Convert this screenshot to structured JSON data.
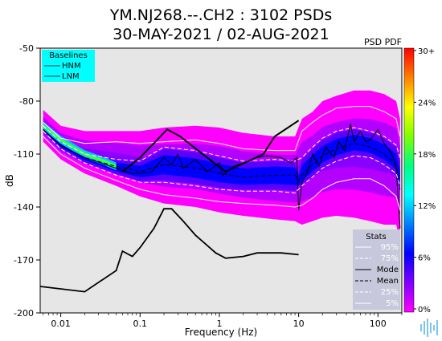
{
  "chart_data": {
    "type": "line",
    "title_line1": "YM.NJ268.--.CH2 : 3102 PSDs",
    "title_line2": "30-MAY-2021 / 02-AUG-2021",
    "corner_label": "PSD PDF",
    "xlabel": "Frequency (Hz)",
    "ylabel": "dB",
    "x_scale": "log",
    "xlim": [
      0.0055,
      200
    ],
    "ylim": [
      -200,
      -50
    ],
    "x_ticks": [
      {
        "value": 0.01,
        "label": "0.01"
      },
      {
        "value": 0.1,
        "label": "0.1"
      },
      {
        "value": 1,
        "label": "1"
      },
      {
        "value": 10,
        "label": "10"
      },
      {
        "value": 100,
        "label": "100"
      }
    ],
    "y_ticks": [
      {
        "value": -50,
        "label": "-50"
      },
      {
        "value": -80,
        "label": "-80"
      },
      {
        "value": -110,
        "label": "-110"
      },
      {
        "value": -140,
        "label": "-140"
      },
      {
        "value": -170,
        "label": "-170"
      },
      {
        "value": -200,
        "label": "-200"
      }
    ],
    "baselines_legend": {
      "title": "Baselines",
      "entries": [
        "HNM",
        "LNM"
      ],
      "background": "#00ffff",
      "placement": "top-left"
    },
    "stats_legend": {
      "title": "Stats",
      "entries": [
        {
          "label": "95%",
          "style": "solid",
          "color": "#ffffff"
        },
        {
          "label": "75%",
          "style": "dashed",
          "color": "#ffffff"
        },
        {
          "label": "Mode",
          "style": "solid",
          "color": "#000000"
        },
        {
          "label": "Mean",
          "style": "dashed",
          "color": "#000000"
        },
        {
          "label": "25%",
          "style": "dashed",
          "color": "#ffffff"
        },
        {
          "label": "5%",
          "style": "solid",
          "color": "#ffffff"
        }
      ],
      "background": "#c8c8dc",
      "placement": "bottom-right"
    },
    "colorbar": {
      "ticks": [
        "30+",
        "24%",
        "18%",
        "12%",
        "6%",
        "0%"
      ],
      "colors": [
        "#ff0000",
        "#ff8000",
        "#ffff00",
        "#80ff00",
        "#00ff80",
        "#00ffff",
        "#0080ff",
        "#0000ff",
        "#8000ff",
        "#ff00ff"
      ]
    },
    "series": [
      {
        "name": "HNM",
        "color": "#000000",
        "style": "solid",
        "x": [
          0.06,
          0.1,
          0.22,
          0.32,
          0.8,
          1.2,
          3.6,
          5,
          10
        ],
        "y": [
          -120,
          -112,
          -96,
          -100,
          -114,
          -120,
          -110,
          -100,
          -91
        ]
      },
      {
        "name": "LNM",
        "color": "#000000",
        "style": "solid",
        "x": [
          0.0055,
          0.02,
          0.05,
          0.06,
          0.08,
          0.1,
          0.15,
          0.2,
          0.25,
          0.35,
          0.5,
          0.9,
          1.2,
          2,
          3,
          6,
          10
        ],
        "y": [
          -185,
          -188,
          -176,
          -165,
          -168,
          -163,
          -152,
          -141,
          -141,
          -148,
          -156,
          -166,
          -169,
          -168,
          -166,
          -166,
          -167
        ]
      },
      {
        "name": "95%",
        "color": "#ffffff",
        "style": "solid",
        "x": [
          0.006,
          0.01,
          0.02,
          0.05,
          0.1,
          0.2,
          0.5,
          1,
          2,
          5,
          9,
          11,
          15,
          20,
          30,
          50,
          80,
          120,
          170,
          190
        ],
        "y": [
          -92,
          -101,
          -104,
          -103,
          -104,
          -103,
          -102,
          -104,
          -107,
          -108,
          -108,
          -97,
          -92,
          -88,
          -84,
          -83,
          -83,
          -86,
          -90,
          -100
        ]
      },
      {
        "name": "75%",
        "color": "#ffffff",
        "style": "dashed",
        "x": [
          0.006,
          0.01,
          0.02,
          0.05,
          0.1,
          0.2,
          0.5,
          1,
          2,
          5,
          9,
          11,
          15,
          20,
          30,
          50,
          80,
          120,
          170,
          190
        ],
        "y": [
          -94,
          -103,
          -110,
          -113,
          -114,
          -106,
          -108,
          -111,
          -114,
          -113,
          -114,
          -112,
          -106,
          -101,
          -97,
          -95,
          -97,
          -100,
          -105,
          -112
        ]
      },
      {
        "name": "Mode",
        "color": "#000000",
        "style": "solid",
        "x": [
          0.006,
          0.01,
          0.02,
          0.05,
          0.08,
          0.1,
          0.14,
          0.2,
          0.25,
          0.3,
          0.35,
          0.5,
          0.7,
          1,
          1.1,
          1.5,
          2,
          3,
          4,
          6,
          8,
          9.5,
          10,
          11,
          13,
          15,
          18,
          22,
          28,
          32,
          38,
          45,
          50,
          60,
          70,
          80,
          100,
          120,
          150,
          170,
          190
        ],
        "y": [
          -96,
          -105,
          -112,
          -118,
          -121,
          -121,
          -120,
          -112,
          -116,
          -110,
          -118,
          -113,
          -120,
          -115,
          -122,
          -117,
          -115,
          -112,
          -111,
          -112,
          -115,
          -112,
          -142,
          -126,
          -120,
          -110,
          -117,
          -106,
          -112,
          -103,
          -108,
          -93,
          -103,
          -97,
          -103,
          -102,
          -96,
          -104,
          -110,
          -118,
          -152
        ]
      },
      {
        "name": "Mean",
        "color": "#000000",
        "style": "dashed",
        "x": [
          0.006,
          0.01,
          0.02,
          0.05,
          0.1,
          0.2,
          0.5,
          1,
          2,
          5,
          9,
          10,
          11,
          15,
          20,
          30,
          50,
          80,
          120,
          170,
          190
        ],
        "y": [
          -96,
          -105,
          -112,
          -117,
          -120,
          -116,
          -118,
          -121,
          -123,
          -122,
          -122,
          -125,
          -122,
          -116,
          -111,
          -107,
          -104,
          -106,
          -110,
          -116,
          -130
        ]
      },
      {
        "name": "25%",
        "color": "#ffffff",
        "style": "dashed",
        "x": [
          0.006,
          0.01,
          0.02,
          0.05,
          0.1,
          0.2,
          0.5,
          1,
          2,
          5,
          9,
          11,
          15,
          20,
          30,
          50,
          80,
          120,
          170,
          190
        ],
        "y": [
          -97,
          -107,
          -115,
          -122,
          -126,
          -126,
          -128,
          -130,
          -131,
          -131,
          -132,
          -128,
          -123,
          -118,
          -114,
          -111,
          -112,
          -116,
          -121,
          -128
        ]
      },
      {
        "name": "5%",
        "color": "#ffffff",
        "style": "solid",
        "x": [
          0.006,
          0.01,
          0.02,
          0.05,
          0.1,
          0.2,
          0.5,
          1,
          2,
          5,
          9,
          11,
          15,
          20,
          30,
          50,
          80,
          120,
          170,
          190
        ],
        "y": [
          -100,
          -110,
          -118,
          -125,
          -130,
          -133,
          -135,
          -137,
          -138,
          -139,
          -140,
          -139,
          -135,
          -130,
          -126,
          -124,
          -124,
          -128,
          -134,
          -142
        ]
      }
    ],
    "density_band": {
      "x": [
        0.006,
        0.01,
        0.02,
        0.05,
        0.1,
        0.2,
        0.5,
        1,
        2,
        5,
        9,
        11,
        15,
        20,
        30,
        50,
        80,
        120,
        170,
        190
      ],
      "upper": [
        -85,
        -94,
        -97,
        -97,
        -97,
        -95,
        -94,
        -95,
        -98,
        -100,
        -100,
        -90,
        -86,
        -80,
        -77,
        -74,
        -74,
        -76,
        -80,
        -90
      ],
      "lower": [
        -103,
        -113,
        -121,
        -128,
        -134,
        -138,
        -140,
        -143,
        -145,
        -147,
        -148,
        -150,
        -148,
        -146,
        -145,
        -146,
        -148,
        -150,
        -150,
        -160
      ]
    }
  }
}
